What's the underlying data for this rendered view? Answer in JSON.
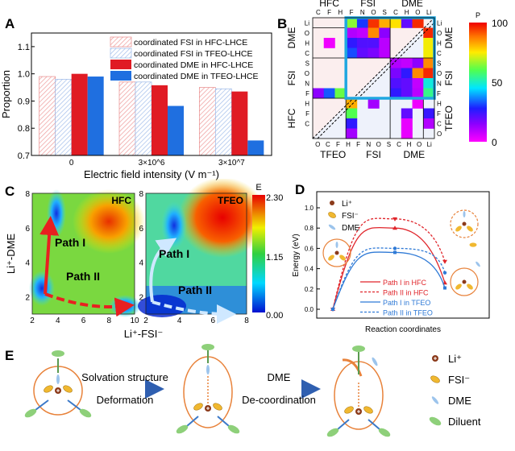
{
  "panels": {
    "a": "A",
    "b": "B",
    "c": "C",
    "d": "D",
    "e": "E"
  },
  "chart_data": [
    {
      "panel": "A",
      "type": "bar",
      "xlabel": "Electric field intensity (V m⁻¹)",
      "ylabel": "Proportion",
      "ylim": [
        0.7,
        1.15
      ],
      "yticks": [
        "0.7",
        "0.8",
        "0.9",
        "1.0",
        "1.1"
      ],
      "categories": [
        "0",
        "3×10^6",
        "3×10^7"
      ],
      "legend_position": "top-right",
      "series": [
        {
          "name": "coordinated FSI in HFC-LHCE",
          "values": [
            0.99,
            0.97,
            0.95
          ],
          "color": "#e88a8a",
          "pattern": "hatched"
        },
        {
          "name": "coordinated FSI in TFEO-LHCE",
          "values": [
            0.98,
            0.97,
            0.945
          ],
          "color": "#9bb8e8",
          "pattern": "hatched"
        },
        {
          "name": "coordinated DME in HFC-LHCE",
          "values": [
            1.0,
            0.958,
            0.935
          ],
          "color": "#e01b24",
          "pattern": "solid"
        },
        {
          "name": "coordinated DME in TFEO-LHCE",
          "values": [
            0.99,
            0.882,
            0.755
          ],
          "color": "#1f6fe0",
          "pattern": "solid"
        }
      ]
    },
    {
      "panel": "B",
      "type": "heatmap",
      "colorbar_title": "P",
      "colorbar_ticks": [
        "100",
        "50",
        "0"
      ],
      "top_groups": [
        "HFC",
        "FSI",
        "DME"
      ],
      "top_cols": [
        "C",
        "F",
        "H",
        "F",
        "N",
        "O",
        "S",
        "C",
        "H",
        "O",
        "Li"
      ],
      "left_groups": [
        "DME",
        "FSI",
        "HFC"
      ],
      "left_rows": [
        "Li",
        "O",
        "H",
        "C",
        "S",
        "O",
        "N",
        "F",
        "H",
        "F",
        "C"
      ],
      "right_groups": [
        "DME",
        "FSI",
        "TFEO"
      ],
      "right_rows": [
        "Li",
        "O",
        "H",
        "C",
        "S",
        "O",
        "N",
        "F",
        "H",
        "F",
        "C",
        "O"
      ],
      "bottom_groups": [
        "TFEO",
        "FSI",
        "DME"
      ],
      "bottom_cols": [
        "O",
        "C",
        "F",
        "H",
        "F",
        "N",
        "O",
        "S",
        "C",
        "H",
        "O",
        "Li"
      ],
      "cells": [
        [
          0,
          3,
          65
        ],
        [
          0,
          4,
          30
        ],
        [
          0,
          5,
          95
        ],
        [
          0,
          6,
          82
        ],
        [
          0,
          7,
          76
        ],
        [
          0,
          8,
          20
        ],
        [
          0,
          9,
          96
        ],
        [
          1,
          3,
          10
        ],
        [
          1,
          4,
          8
        ],
        [
          1,
          5,
          86
        ],
        [
          1,
          6,
          15
        ],
        [
          1,
          10,
          96
        ],
        [
          2,
          1,
          2
        ],
        [
          2,
          3,
          26
        ],
        [
          2,
          4,
          22
        ],
        [
          2,
          5,
          22
        ],
        [
          2,
          6,
          9
        ],
        [
          2,
          10,
          74
        ],
        [
          3,
          3,
          32
        ],
        [
          3,
          4,
          20
        ],
        [
          3,
          5,
          17
        ],
        [
          3,
          6,
          9
        ],
        [
          3,
          10,
          74
        ],
        [
          4,
          7,
          10
        ],
        [
          4,
          8,
          8
        ],
        [
          4,
          9,
          15
        ],
        [
          4,
          10,
          86
        ],
        [
          5,
          7,
          17
        ],
        [
          5,
          8,
          26
        ],
        [
          5,
          9,
          86
        ],
        [
          5,
          10,
          96
        ],
        [
          6,
          7,
          22
        ],
        [
          6,
          8,
          20
        ],
        [
          6,
          9,
          8
        ],
        [
          6,
          10,
          48
        ],
        [
          7,
          0,
          15
        ],
        [
          7,
          1,
          33
        ],
        [
          7,
          2,
          62
        ],
        [
          7,
          7,
          26
        ],
        [
          7,
          8,
          20
        ],
        [
          7,
          9,
          9
        ],
        [
          7,
          10,
          55
        ],
        [
          8,
          3,
          82
        ],
        [
          8,
          5,
          12
        ],
        [
          8,
          9,
          2
        ],
        [
          9,
          3,
          60
        ],
        [
          9,
          8,
          20
        ],
        [
          9,
          10,
          25
        ],
        [
          10,
          3,
          26
        ],
        [
          10,
          8,
          3
        ],
        [
          10,
          10,
          10
        ],
        [
          11,
          3,
          12
        ],
        [
          11,
          8,
          3
        ]
      ]
    },
    {
      "panel": "C",
      "type": "heatmap",
      "xlabel": "Li⁺-FSI⁻",
      "ylabel": "Li⁺-DME",
      "colorbar_title": "E",
      "colorbar_ticks": [
        "2.30",
        "1.15",
        "0.00"
      ],
      "maps": [
        {
          "label": "HFC",
          "xticks": [
            "2",
            "4",
            "6",
            "8",
            "10"
          ],
          "yticks": [
            "8",
            "6",
            "4",
            "2"
          ],
          "paths": [
            "Path I",
            "Path II"
          ]
        },
        {
          "label": "TFEO",
          "xticks": [
            "2",
            "4",
            "6",
            "8"
          ],
          "yticks": [
            "8",
            "6",
            "4",
            "2"
          ],
          "paths": [
            "Path I",
            "Path II"
          ]
        }
      ]
    },
    {
      "panel": "D",
      "type": "line",
      "xlabel": "Reaction coordinates",
      "ylabel": "Energy (eV)",
      "ylim": [
        -0.05,
        1.1
      ],
      "yticks": [
        "0.0",
        "0.2",
        "0.4",
        "0.6",
        "0.8",
        "1.0"
      ],
      "species_legend": [
        "Li⁺",
        "FSI⁻",
        "DME"
      ],
      "series": [
        {
          "name": "Path I in HFC",
          "values": [
            0,
            0.8,
            0.26
          ],
          "color": "#e0252b",
          "dash": "solid",
          "marker": "triangle-up"
        },
        {
          "name": "Path II in HFC",
          "values": [
            0,
            0.89,
            0.47
          ],
          "color": "#e0252b",
          "dash": "dashed",
          "marker": "triangle-down"
        },
        {
          "name": "Path I in TFEO",
          "values": [
            0,
            0.56,
            0.21
          ],
          "color": "#2f7ad6",
          "dash": "solid",
          "marker": "square"
        },
        {
          "name": "Path II in TFEO",
          "values": [
            0,
            0.6,
            0.36
          ],
          "color": "#2f7ad6",
          "dash": "dashed",
          "marker": "circle"
        }
      ]
    }
  ],
  "panel_e": {
    "step1_top": "Solvation structure",
    "step1_bottom": "Deformation",
    "step2_top": "DME",
    "step2_bottom": "De-coordination",
    "legend": [
      "Li⁺",
      "FSI⁻",
      "DME",
      "Diluent"
    ]
  }
}
